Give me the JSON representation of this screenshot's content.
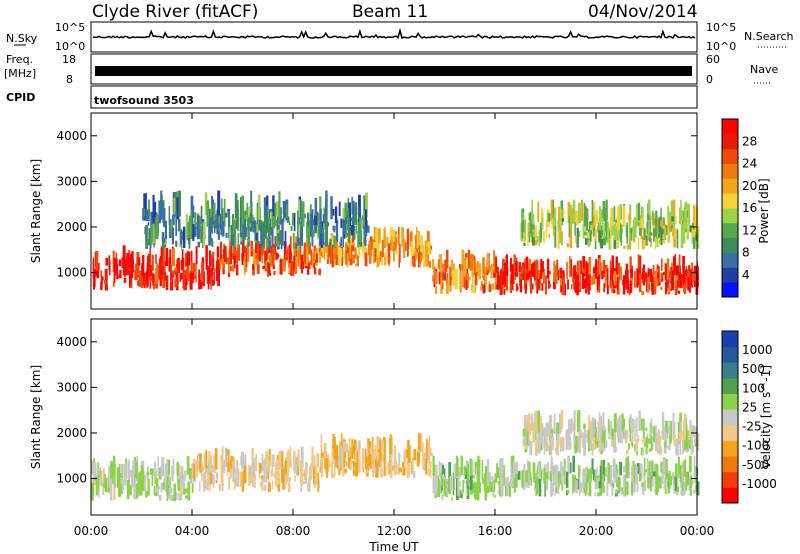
{
  "header": {
    "station": "Clyde River (fitACF)",
    "beam": "Beam 11",
    "date": "04/Nov/2014"
  },
  "strip_panels": {
    "nsky_label": "N.Sky",
    "nsky_ticks": [
      "10^5",
      "10^0"
    ],
    "nsearch_label": "N.Search",
    "nsearch_ticks": [
      "10^5",
      "10^0"
    ],
    "freq_label": "Freq.",
    "freq_unit": "[MHz]",
    "freq_ticks": [
      "18",
      "8"
    ],
    "nave_label": "Nave",
    "nave_ticks": [
      "60",
      "0"
    ],
    "cpid_label": "CPID",
    "cpid_value": "twofsound 3503"
  },
  "time_axis": {
    "label": "Time UT",
    "ticks": [
      "00:00",
      "04:00",
      "08:00",
      "12:00",
      "16:00",
      "20:00",
      "00:00"
    ]
  },
  "colors": {
    "power_scale": [
      "#0014ff",
      "#1f3fa6",
      "#3b6fa3",
      "#3f8a5a",
      "#5aa64a",
      "#9bd24a",
      "#f4d23c",
      "#f2a51c",
      "#f07a12",
      "#ee4a0c",
      "#e81b0b",
      "#ff0000"
    ],
    "velocity_scale": [
      "#ff0000",
      "#f23c0c",
      "#f07a12",
      "#f2a51c",
      "#f0c88a",
      "#c8c8c8",
      "#8ad24a",
      "#4fa050",
      "#3b7f8a",
      "#24599a",
      "#1a3fb0"
    ]
  },
  "chart_data": [
    {
      "type": "heatmap",
      "panel": "power",
      "title": "",
      "xlabel": "Time UT",
      "ylabel": "Slant Range [km]",
      "xlim": [
        0,
        24
      ],
      "ylim": [
        200,
        4500
      ],
      "yticks": [
        "1000",
        "2000",
        "3000",
        "4000"
      ],
      "colorbar": {
        "label": "Power [dB]",
        "range": [
          0,
          30
        ],
        "ticks": [
          "28",
          "24",
          "20",
          "16",
          "12",
          "8",
          "4"
        ]
      },
      "bands": [
        {
          "t_start": 0,
          "t_end": 5,
          "range_min": 600,
          "range_max": 1600,
          "level_db": 28
        },
        {
          "t_start": 5,
          "t_end": 9,
          "range_min": 900,
          "range_max": 1800,
          "level_db": 24
        },
        {
          "t_start": 9,
          "t_end": 13.5,
          "range_min": 1100,
          "range_max": 2000,
          "level_db": 20
        },
        {
          "t_start": 13.5,
          "t_end": 16,
          "range_min": 500,
          "range_max": 1500,
          "level_db": 22
        },
        {
          "t_start": 16,
          "t_end": 24,
          "range_min": 500,
          "range_max": 1400,
          "level_db": 27
        },
        {
          "t_start": 2,
          "t_end": 11,
          "range_min": 1500,
          "range_max": 2800,
          "level_db": 8
        },
        {
          "t_start": 17,
          "t_end": 24,
          "range_min": 1500,
          "range_max": 2600,
          "level_db": 14
        }
      ]
    },
    {
      "type": "heatmap",
      "panel": "velocity",
      "title": "",
      "xlabel": "Time UT",
      "ylabel": "Slant Range [km]",
      "xlim": [
        0,
        24
      ],
      "ylim": [
        200,
        4500
      ],
      "yticks": [
        "1000",
        "2000",
        "3000",
        "4000"
      ],
      "colorbar": {
        "label": "Velocity [m s^-1]",
        "range": [
          -1200,
          1200
        ],
        "ticks": [
          "1000",
          "500",
          "100",
          "25",
          "-25",
          "-100",
          "-500",
          "-1000"
        ]
      },
      "bands": [
        {
          "t_start": 0,
          "t_end": 4,
          "range_min": 500,
          "range_max": 1500,
          "level_ms": 100
        },
        {
          "t_start": 4,
          "t_end": 9,
          "range_min": 700,
          "range_max": 1700,
          "level_ms": -200
        },
        {
          "t_start": 9,
          "t_end": 13.5,
          "range_min": 1000,
          "range_max": 2000,
          "level_ms": -300
        },
        {
          "t_start": 13.5,
          "t_end": 16,
          "range_min": 500,
          "range_max": 1500,
          "level_ms": 200
        },
        {
          "t_start": 16,
          "t_end": 24,
          "range_min": 600,
          "range_max": 1500,
          "level_ms": 150
        },
        {
          "t_start": 17,
          "t_end": 24,
          "range_min": 1500,
          "range_max": 2500,
          "level_ms": 0
        }
      ]
    }
  ]
}
